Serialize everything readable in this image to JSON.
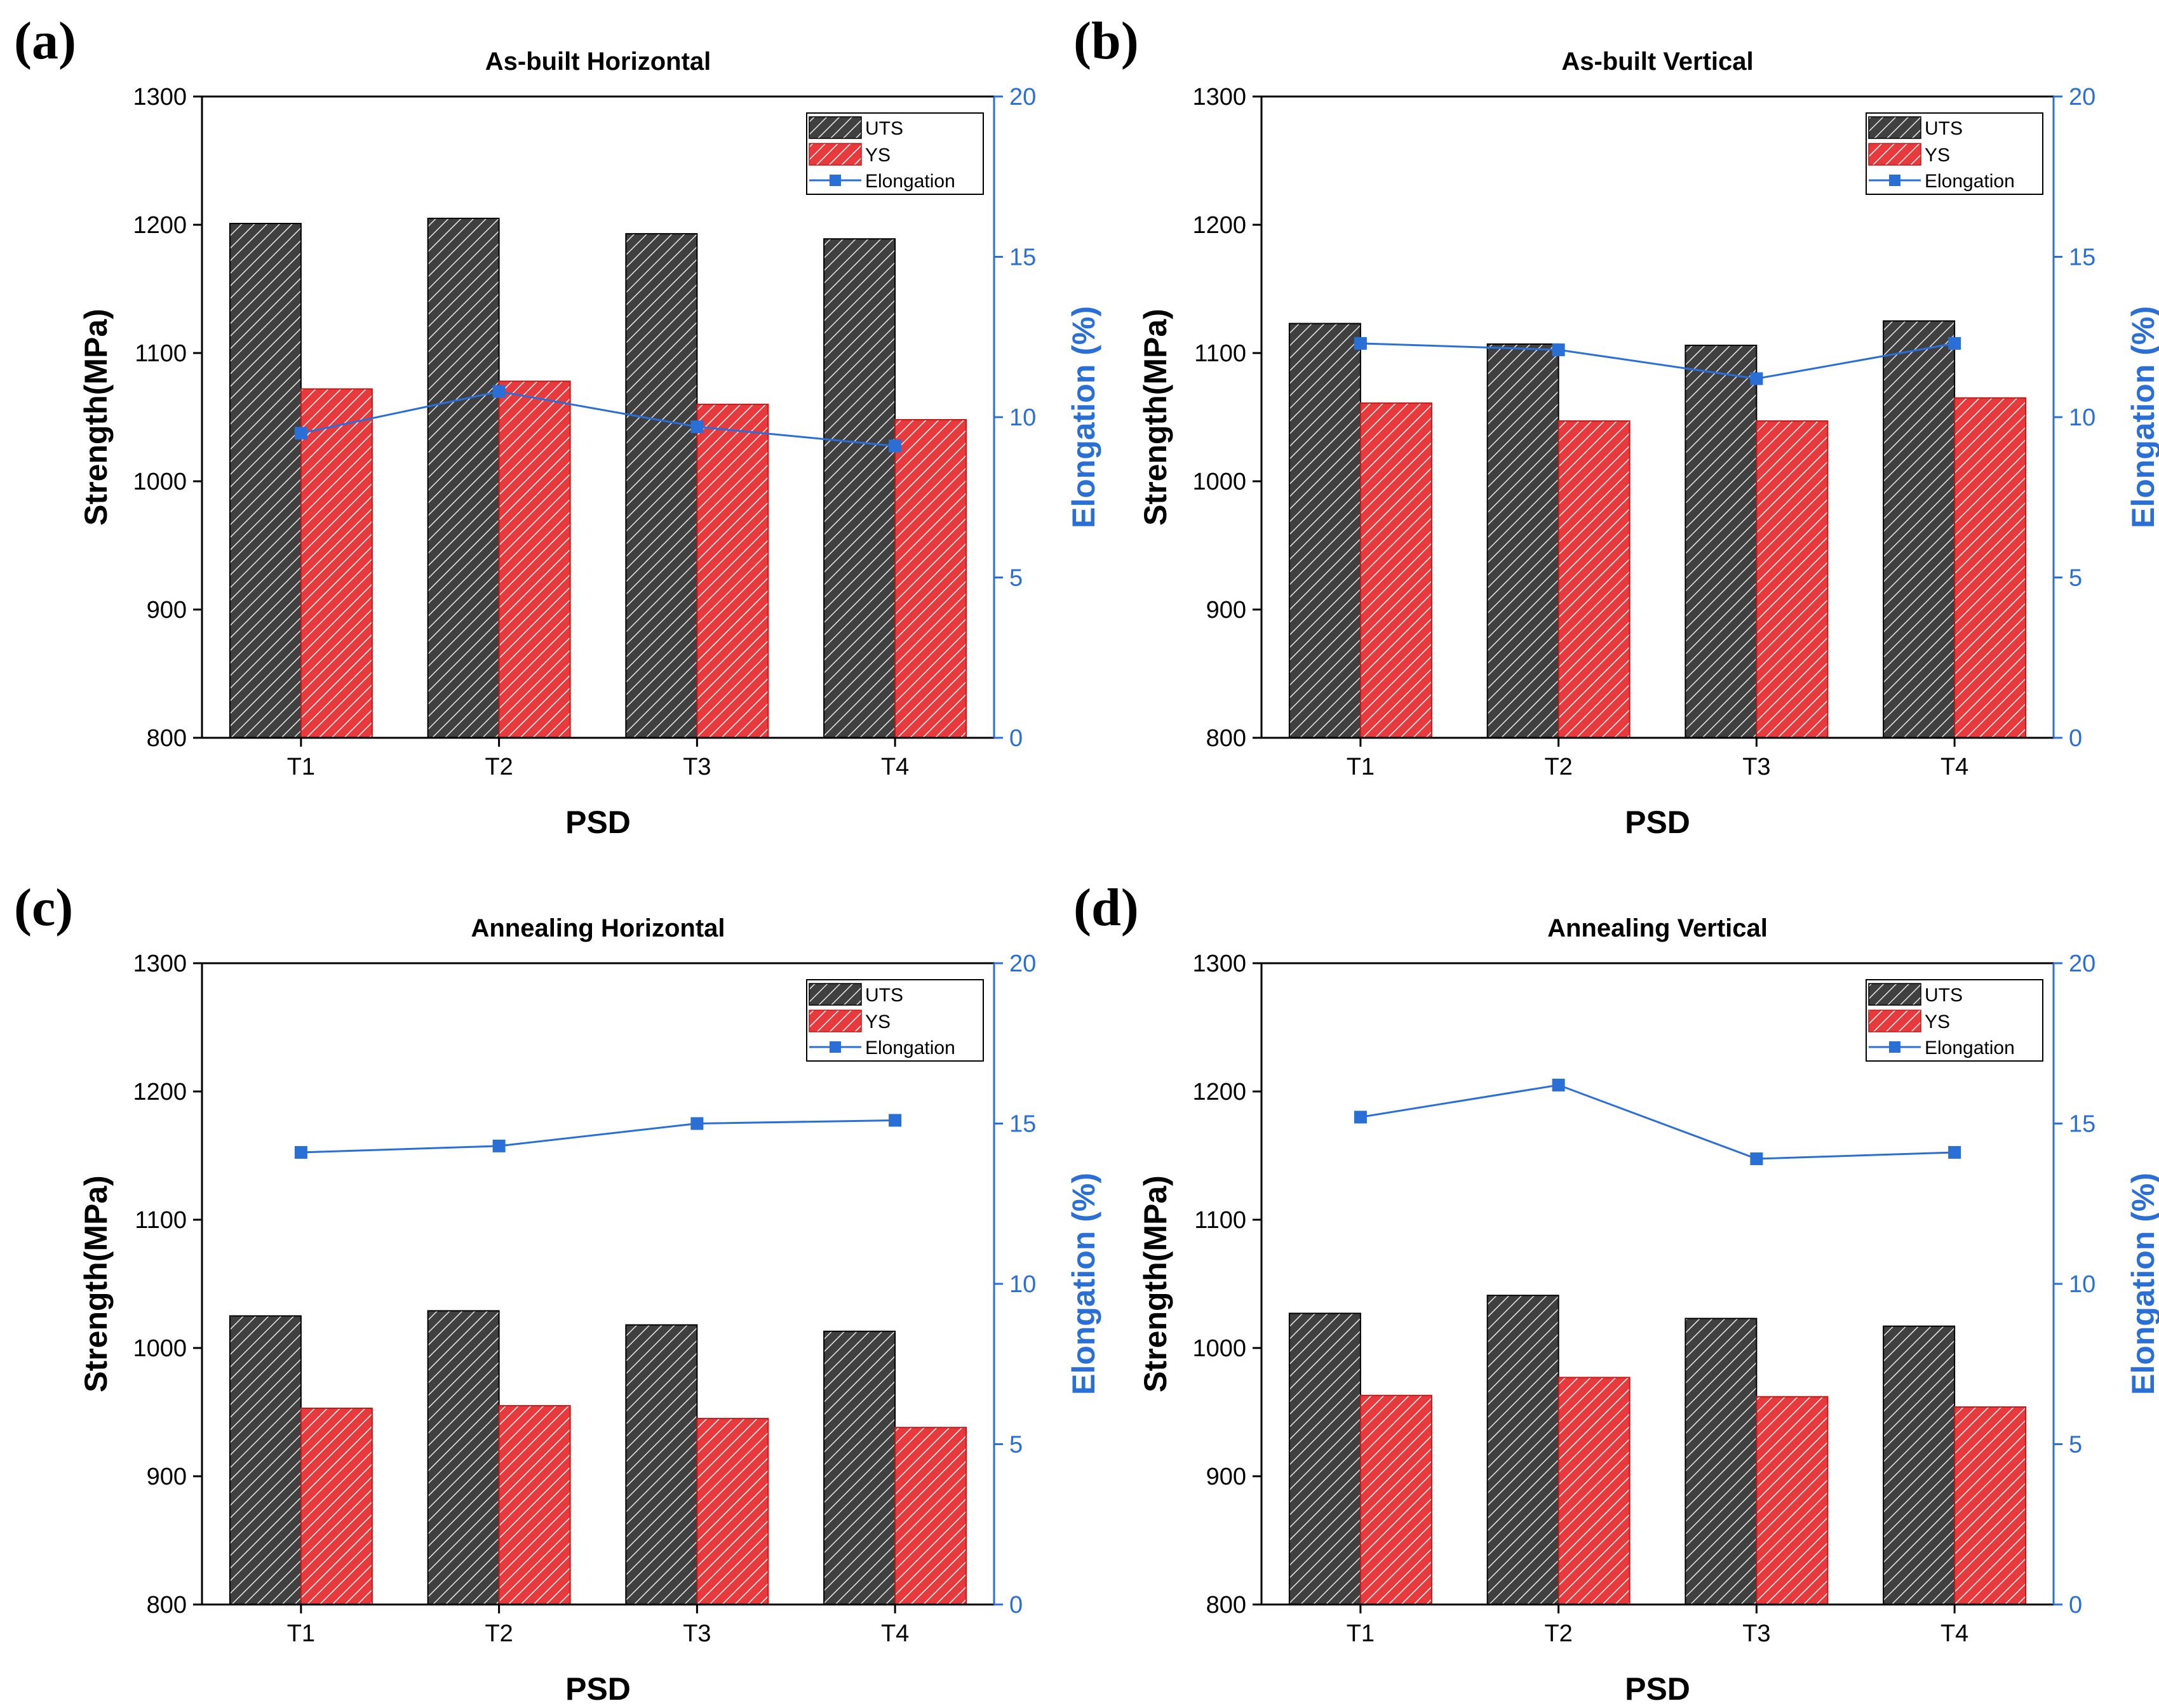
{
  "colors": {
    "uts_fill": "#404040",
    "uts_hatch": "#e8e8e8",
    "ys_fill": "#e8393c",
    "ys_hatch": "#ffffff",
    "elongation": "#2a6fd6"
  },
  "chart_data": [
    {
      "panel_label": "(a)",
      "type": "bar",
      "title": "As-built Horizontal",
      "xlabel": "PSD",
      "ylabel": "Strength(MPa)",
      "y2label": "Elongation (%)",
      "categories": [
        "T1",
        "T2",
        "T3",
        "T4"
      ],
      "ylim": [
        800,
        1300
      ],
      "yticks": [
        800,
        900,
        1000,
        1100,
        1200,
        1300
      ],
      "y2lim": [
        0,
        20
      ],
      "y2ticks": [
        0,
        5,
        10,
        15,
        20
      ],
      "legend_position": "top-right",
      "series": [
        {
          "name": "UTS",
          "kind": "bar",
          "values": [
            1201,
            1205,
            1193,
            1189
          ]
        },
        {
          "name": "YS",
          "kind": "bar",
          "values": [
            1072,
            1078,
            1060,
            1048
          ]
        },
        {
          "name": "Elongation",
          "kind": "line",
          "axis": "right",
          "values": [
            9.5,
            10.8,
            9.7,
            9.1
          ]
        }
      ]
    },
    {
      "panel_label": "(b)",
      "type": "bar",
      "title": "As-built Vertical",
      "xlabel": "PSD",
      "ylabel": "Strength(MPa)",
      "y2label": "Elongation (%)",
      "categories": [
        "T1",
        "T2",
        "T3",
        "T4"
      ],
      "ylim": [
        800,
        1300
      ],
      "yticks": [
        800,
        900,
        1000,
        1100,
        1200,
        1300
      ],
      "y2lim": [
        0,
        20
      ],
      "y2ticks": [
        0,
        5,
        10,
        15,
        20
      ],
      "legend_position": "top-right",
      "series": [
        {
          "name": "UTS",
          "kind": "bar",
          "values": [
            1123,
            1107,
            1106,
            1125
          ]
        },
        {
          "name": "YS",
          "kind": "bar",
          "values": [
            1061,
            1047,
            1047,
            1065
          ]
        },
        {
          "name": "Elongation",
          "kind": "line",
          "axis": "right",
          "values": [
            12.3,
            12.1,
            11.2,
            12.3
          ]
        }
      ]
    },
    {
      "panel_label": "(c)",
      "type": "bar",
      "title": "Annealing Horizontal",
      "xlabel": "PSD",
      "ylabel": "Strength(MPa)",
      "y2label": "Elongation (%)",
      "categories": [
        "T1",
        "T2",
        "T3",
        "T4"
      ],
      "ylim": [
        800,
        1300
      ],
      "yticks": [
        800,
        900,
        1000,
        1100,
        1200,
        1300
      ],
      "y2lim": [
        0,
        20
      ],
      "y2ticks": [
        0,
        5,
        10,
        15,
        20
      ],
      "legend_position": "top-right",
      "series": [
        {
          "name": "UTS",
          "kind": "bar",
          "values": [
            1025,
            1029,
            1018,
            1013
          ]
        },
        {
          "name": "YS",
          "kind": "bar",
          "values": [
            953,
            955,
            945,
            938
          ]
        },
        {
          "name": "Elongation",
          "kind": "line",
          "axis": "right",
          "values": [
            14.1,
            14.3,
            15.0,
            15.1
          ]
        }
      ]
    },
    {
      "panel_label": "(d)",
      "type": "bar",
      "title": "Annealing Vertical",
      "xlabel": "PSD",
      "ylabel": "Strength(MPa)",
      "y2label": "Elongation (%)",
      "categories": [
        "T1",
        "T2",
        "T3",
        "T4"
      ],
      "ylim": [
        800,
        1300
      ],
      "yticks": [
        800,
        900,
        1000,
        1100,
        1200,
        1300
      ],
      "y2lim": [
        0,
        20
      ],
      "y2ticks": [
        0,
        5,
        10,
        15,
        20
      ],
      "legend_position": "top-right",
      "series": [
        {
          "name": "UTS",
          "kind": "bar",
          "values": [
            1027,
            1041,
            1023,
            1017
          ]
        },
        {
          "name": "YS",
          "kind": "bar",
          "values": [
            963,
            977,
            962,
            954
          ]
        },
        {
          "name": "Elongation",
          "kind": "line",
          "axis": "right",
          "values": [
            15.2,
            16.2,
            13.9,
            14.1
          ]
        }
      ]
    }
  ]
}
